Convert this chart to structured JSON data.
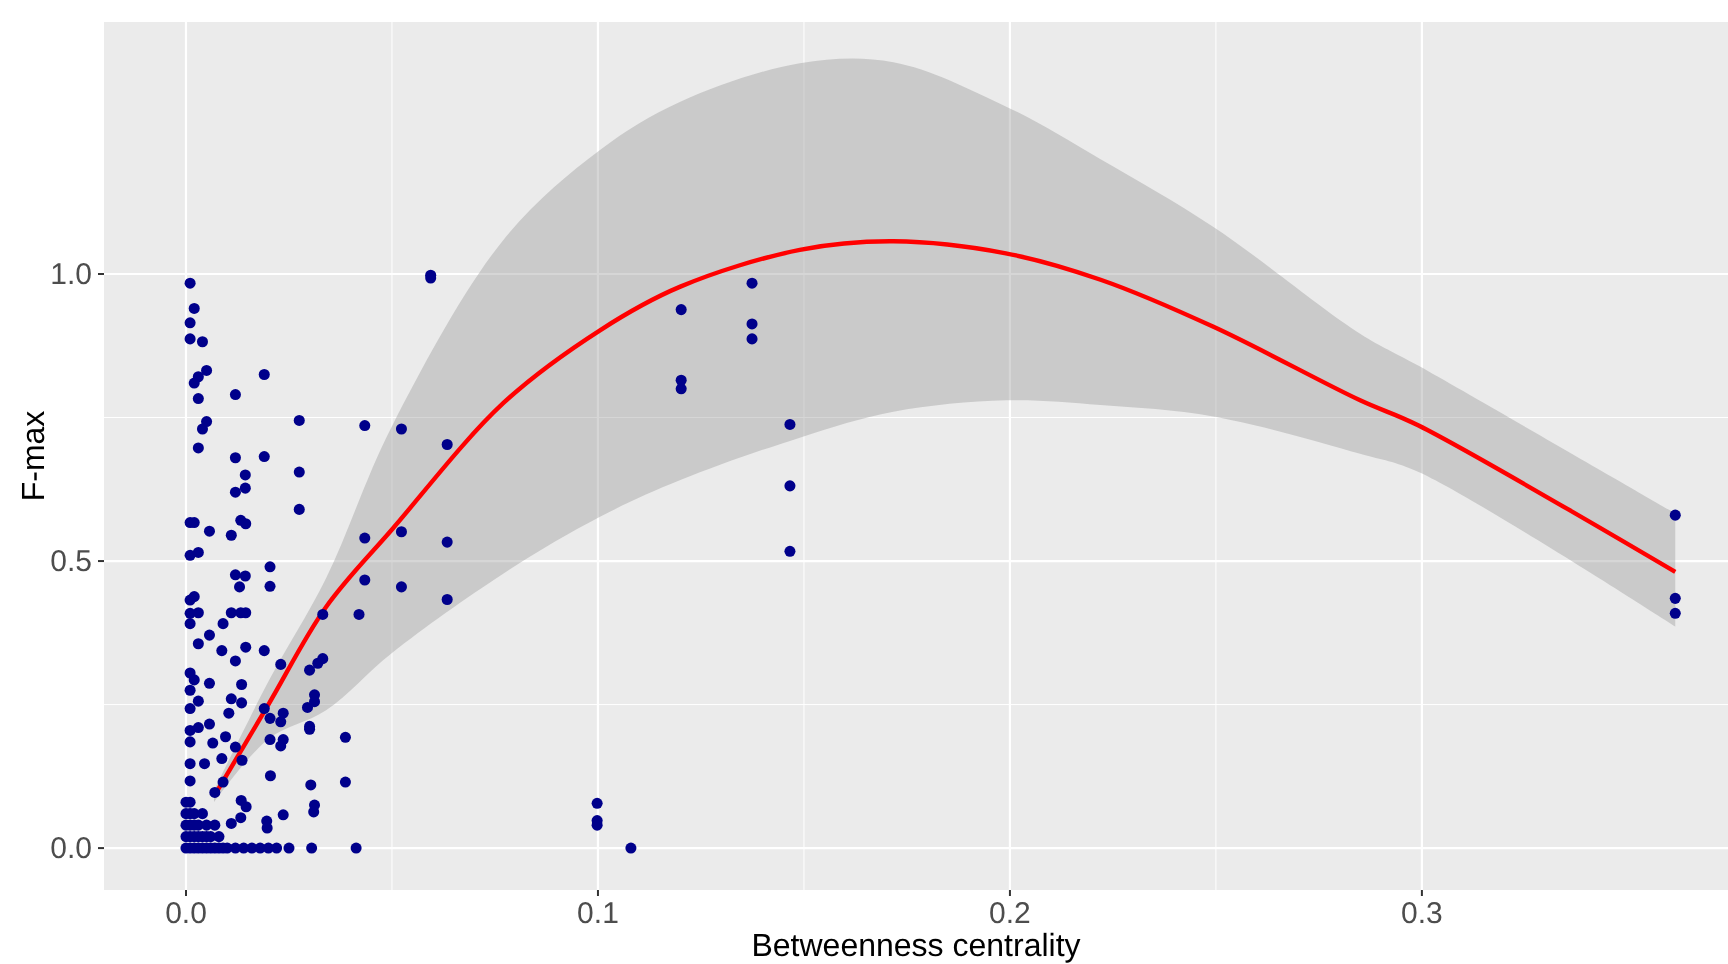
{
  "chart_data": {
    "type": "scatter",
    "xlabel": "Betweenness centrality",
    "ylabel": "F-max",
    "xlim": [
      -0.0199,
      0.3743
    ],
    "ylim": [
      -0.073,
      1.439
    ],
    "xticks": [
      {
        "value": 0,
        "label": "0.0"
      },
      {
        "value": 0.1,
        "label": "0.1"
      },
      {
        "value": 0.2,
        "label": "0.2"
      },
      {
        "value": 0.3,
        "label": "0.3"
      }
    ],
    "yticks": [
      {
        "value": 0,
        "label": "0.0"
      },
      {
        "value": 0.5,
        "label": "0.5"
      },
      {
        "value": 1,
        "label": "1.0"
      }
    ],
    "grid": true,
    "marker": "circle",
    "series": [
      {
        "color": "#00008b",
        "x": [
          0.001,
          0.002,
          0.001,
          0.001,
          0.004,
          0.005,
          0.003,
          0.002,
          0.003,
          0.019,
          0.012,
          0.005,
          0.004,
          0.003,
          0.0275,
          0.0434,
          0.0523,
          0.0634,
          0.012,
          0.019,
          0.0144,
          0.0275,
          0.012,
          0.0144,
          0.0275,
          0.0133,
          0.0145,
          0.001,
          0.002,
          0.0057,
          0.011,
          0.0434,
          0.0523,
          0.0634,
          0.001,
          0.003,
          0.0204,
          0.012,
          0.0144,
          0.013,
          0.0204,
          0.0434,
          0.0523,
          0.0634,
          0.001,
          0.002,
          0.001,
          0.003,
          0.011,
          0.0133,
          0.0145,
          0.0332,
          0.042,
          0.009,
          0.001,
          0.0057,
          0.003,
          0.0145,
          0.0087,
          0.012,
          0.019,
          0.023,
          0.03,
          0.032,
          0.0332,
          0.001,
          0.002,
          0.0057,
          0.0135,
          0.0312,
          0.001,
          0.003,
          0.011,
          0.019,
          0.0104,
          0.0135,
          0.0295,
          0.0312,
          0.0236,
          0.023,
          0.0204,
          0.001,
          0.0057,
          0.003,
          0.03,
          0.03,
          0.0387,
          0.001,
          0.0096,
          0.0236,
          0.0204,
          0.0065,
          0.023,
          0.012,
          0.001,
          0.0087,
          0.0136,
          0.0045,
          0.001,
          0.0205,
          0.0387,
          0.0303,
          0.009,
          0.001,
          0.007,
          0.0134,
          0.0312,
          0.031,
          0.0236,
          0.0146,
          0.0196,
          0.0133,
          0.011,
          0.0197,
          0.0,
          0.001,
          0.002,
          0.003,
          0.004,
          0.005,
          0.006,
          0.007,
          0.008,
          0.009,
          0.01,
          0.012,
          0.014,
          0.016,
          0.018,
          0.02,
          0.022,
          0.025,
          0.0305,
          0.0413,
          0.0,
          0.001,
          0.002,
          0.003,
          0.004,
          0.005,
          0.006,
          0.008,
          0.0,
          0.001,
          0.002,
          0.003,
          0.005,
          0.007,
          0.0,
          0.001,
          0.002,
          0.004,
          0.0,
          0.001,
          0.0594,
          0.0594,
          0.1202,
          0.1202,
          0.1202,
          0.1374,
          0.1374,
          0.1374,
          0.1466,
          0.1466,
          0.1466,
          0.0998,
          0.0998,
          0.0998,
          0.108,
          0.3615,
          0.3615,
          0.3615
        ],
        "values": [
          0.984,
          0.94,
          0.915,
          0.887,
          0.882,
          0.832,
          0.821,
          0.81,
          0.783,
          0.825,
          0.79,
          0.743,
          0.73,
          0.697,
          0.745,
          0.736,
          0.73,
          0.703,
          0.68,
          0.682,
          0.65,
          0.655,
          0.62,
          0.627,
          0.59,
          0.571,
          0.565,
          0.567,
          0.567,
          0.552,
          0.545,
          0.54,
          0.551,
          0.533,
          0.51,
          0.515,
          0.49,
          0.476,
          0.474,
          0.455,
          0.456,
          0.467,
          0.455,
          0.433,
          0.432,
          0.438,
          0.409,
          0.41,
          0.41,
          0.41,
          0.41,
          0.407,
          0.407,
          0.391,
          0.391,
          0.371,
          0.356,
          0.35,
          0.344,
          0.326,
          0.344,
          0.32,
          0.31,
          0.322,
          0.33,
          0.305,
          0.293,
          0.287,
          0.285,
          0.267,
          0.275,
          0.256,
          0.26,
          0.243,
          0.235,
          0.253,
          0.245,
          0.255,
          0.235,
          0.22,
          0.226,
          0.243,
          0.216,
          0.21,
          0.212,
          0.207,
          0.193,
          0.205,
          0.194,
          0.189,
          0.189,
          0.183,
          0.178,
          0.176,
          0.185,
          0.156,
          0.153,
          0.147,
          0.147,
          0.126,
          0.115,
          0.11,
          0.115,
          0.117,
          0.097,
          0.083,
          0.075,
          0.063,
          0.058,
          0.072,
          0.047,
          0.053,
          0.043,
          0.035,
          0,
          0,
          0,
          0,
          0,
          0,
          0,
          0,
          0,
          0,
          0,
          0,
          0,
          0,
          0,
          0,
          0,
          0,
          0,
          0,
          0.02,
          0.02,
          0.02,
          0.02,
          0.02,
          0.02,
          0.02,
          0.02,
          0.04,
          0.04,
          0.04,
          0.04,
          0.04,
          0.04,
          0.06,
          0.06,
          0.06,
          0.06,
          0.08,
          0.08,
          0.998,
          0.993,
          0.938,
          0.815,
          0.8,
          0.984,
          0.913,
          0.887,
          0.738,
          0.631,
          0.517,
          0.078,
          0.048,
          0.04,
          0,
          0.58,
          0.435,
          0.409
        ]
      },
      {
        "type": "line",
        "color": "#ff0000",
        "marker": "none",
        "line_style": "solid",
        "x": [
          0.0068,
          0.02,
          0.034,
          0.05,
          0.077,
          0.1005,
          0.12,
          0.149,
          0.1717,
          0.199,
          0.222,
          0.2494,
          0.285,
          0.2992,
          0.3615
        ],
        "values": [
          0.09,
          0.25,
          0.42,
          0.555,
          0.775,
          0.902,
          0.978,
          1.042,
          1.057,
          1.036,
          0.99,
          0.908,
          0.78,
          0.736,
          0.481
        ],
        "upper": [
          0.1,
          0.29,
          0.47,
          0.735,
          1.059,
          1.216,
          1.3,
          1.367,
          1.369,
          1.292,
          1.2,
          1.082,
          0.896,
          0.84,
          0.583
        ],
        "lower": [
          0.08,
          0.19,
          0.24,
          0.34,
          0.478,
          0.577,
          0.641,
          0.715,
          0.76,
          0.78,
          0.772,
          0.752,
          0.687,
          0.655,
          0.386
        ]
      }
    ]
  }
}
